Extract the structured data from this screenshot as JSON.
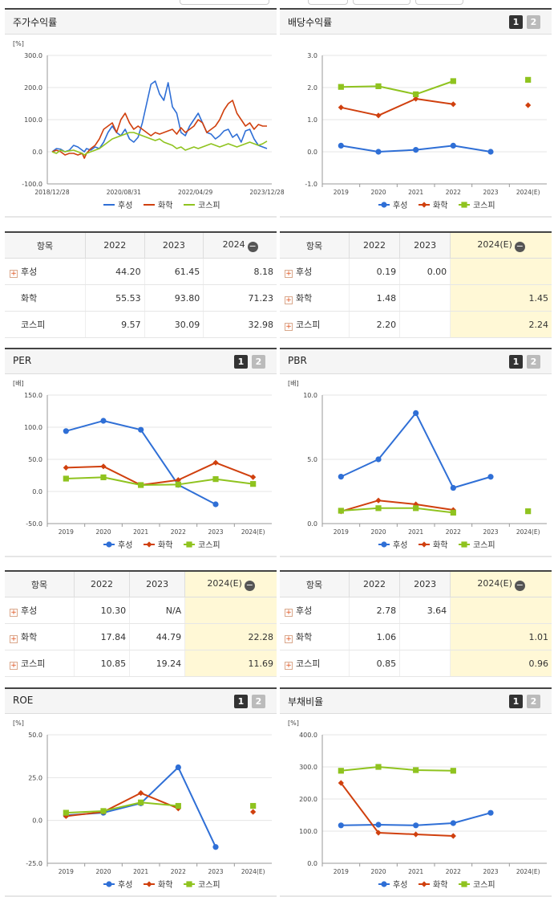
{
  "colors": {
    "husung": "#2f6fd6",
    "chem": "#d0400e",
    "kospi": "#8fc31f",
    "highlight": "#fff8d6"
  },
  "panels": [
    {
      "id": "returns",
      "title": "주가수익률",
      "pager": false,
      "unit": "[%]",
      "chart_data": {
        "type": "line",
        "title": "주가수익률",
        "ylabel": "[%]",
        "ylim": [
          -100,
          300
        ],
        "yticks": [
          "300.0",
          "200.0",
          "100.0",
          "0.0",
          "-100.0"
        ],
        "xticks": [
          "2018/12/28",
          "2020/08/31",
          "2022/04/29",
          "2023/12/28"
        ],
        "x": [
          0,
          2,
          4,
          6,
          8,
          10,
          12,
          14,
          15,
          16,
          18,
          20,
          22,
          24,
          26,
          28,
          30,
          32,
          34,
          36,
          38,
          40,
          42,
          44,
          46,
          48,
          50,
          52,
          54,
          56,
          58,
          60,
          62,
          64,
          66,
          68,
          70,
          72,
          74,
          76,
          78,
          80,
          82,
          84,
          86,
          88,
          90,
          92,
          94,
          96,
          98,
          100
        ],
        "series": [
          {
            "name": "후성",
            "values": [
              0,
              10,
              8,
              0,
              5,
              20,
              15,
              5,
              0,
              10,
              5,
              15,
              10,
              30,
              60,
              80,
              60,
              50,
              70,
              40,
              30,
              45,
              90,
              150,
              210,
              220,
              180,
              160,
              215,
              140,
              120,
              60,
              50,
              80,
              100,
              120,
              90,
              60,
              55,
              40,
              50,
              65,
              70,
              45,
              55,
              30,
              65,
              70,
              40,
              20,
              15,
              10
            ]
          },
          {
            "name": "화학",
            "values": [
              0,
              5,
              0,
              -10,
              -5,
              -5,
              -10,
              -5,
              -20,
              -5,
              10,
              20,
              40,
              70,
              80,
              90,
              60,
              100,
              120,
              90,
              70,
              80,
              70,
              60,
              50,
              60,
              55,
              60,
              65,
              70,
              55,
              75,
              60,
              70,
              80,
              100,
              90,
              60,
              70,
              80,
              100,
              130,
              150,
              160,
              120,
              100,
              80,
              90,
              70,
              85,
              80,
              80
            ]
          },
          {
            "name": "코스피",
            "values": [
              0,
              -5,
              5,
              0,
              3,
              5,
              0,
              -5,
              -10,
              -5,
              0,
              5,
              10,
              20,
              30,
              40,
              45,
              50,
              55,
              60,
              60,
              55,
              50,
              45,
              40,
              35,
              40,
              30,
              25,
              20,
              10,
              15,
              5,
              10,
              15,
              10,
              15,
              20,
              25,
              20,
              15,
              20,
              25,
              20,
              15,
              20,
              25,
              30,
              25,
              20,
              25,
              33
            ]
          }
        ],
        "legend": "bottom"
      },
      "table": null
    },
    {
      "id": "dividend",
      "title": "배당수익률",
      "pager": true,
      "unit": "",
      "chart_data": {
        "type": "line",
        "title": "배당수익률",
        "ylabel": "",
        "ylim": [
          -1,
          3
        ],
        "yticks": [
          "3.0",
          "2.0",
          "1.0",
          "0.0",
          "-1.0"
        ],
        "categories": [
          "2019",
          "2020",
          "2021",
          "2022",
          "2023",
          "2024(E)"
        ],
        "series": [
          {
            "name": "후성",
            "values": [
              0.19,
              0.0,
              0.06,
              0.19,
              0.0,
              null
            ]
          },
          {
            "name": "화학",
            "values": [
              1.38,
              1.13,
              1.65,
              1.48,
              null,
              1.45
            ]
          },
          {
            "name": "코스피",
            "values": [
              2.02,
              2.04,
              1.79,
              2.2,
              null,
              2.24
            ]
          }
        ],
        "legend": "bottom"
      }
    },
    {
      "id": "per",
      "title": "PER",
      "pager": true,
      "unit": "[배]",
      "chart_data": {
        "type": "line",
        "title": "PER",
        "ylabel": "[배]",
        "ylim": [
          -50,
          150
        ],
        "yticks": [
          "150.0",
          "100.0",
          "50.0",
          "0.0",
          "-50.0"
        ],
        "categories": [
          "2019",
          "2020",
          "2021",
          "2022",
          "2023",
          "2024(E)"
        ],
        "series": [
          {
            "name": "후성",
            "values": [
              94,
              110,
              96,
              10.3,
              -20,
              null
            ]
          },
          {
            "name": "화학",
            "values": [
              37,
              39,
              10,
              17.84,
              44.79,
              22.28
            ]
          },
          {
            "name": "코스피",
            "values": [
              20,
              22,
              10,
              10.85,
              19.24,
              11.69
            ]
          }
        ],
        "legend": "bottom"
      }
    },
    {
      "id": "pbr",
      "title": "PBR",
      "pager": true,
      "unit": "[배]",
      "chart_data": {
        "type": "line",
        "title": "PBR",
        "ylabel": "[배]",
        "ylim": [
          0,
          10
        ],
        "yticks": [
          "10.0",
          "5.0",
          "0.0"
        ],
        "categories": [
          "2019",
          "2020",
          "2021",
          "2022",
          "2023",
          "2024(E)"
        ],
        "series": [
          {
            "name": "후성",
            "values": [
              3.65,
              5.0,
              8.6,
              2.78,
              3.64,
              null
            ]
          },
          {
            "name": "화학",
            "values": [
              0.95,
              1.8,
              1.5,
              1.06,
              null,
              null
            ]
          },
          {
            "name": "코스피",
            "values": [
              1.0,
              1.2,
              1.2,
              0.85,
              null,
              0.96
            ]
          }
        ],
        "legend": "bottom"
      }
    },
    {
      "id": "roe",
      "title": "ROE",
      "pager": true,
      "unit": "[%]",
      "chart_data": {
        "type": "line",
        "title": "ROE",
        "ylabel": "[%]",
        "ylim": [
          -25,
          50
        ],
        "yticks": [
          "50.0",
          "25.0",
          "0.0",
          "-25.0"
        ],
        "categories": [
          "2019",
          "2020",
          "2021",
          "2022",
          "2023",
          "2024(E)"
        ],
        "series": [
          {
            "name": "후성",
            "values": [
              3,
              4.5,
              10,
              31,
              -15.5,
              null
            ]
          },
          {
            "name": "화학",
            "values": [
              2.5,
              5,
              16,
              7,
              null,
              5
            ]
          },
          {
            "name": "코스피",
            "values": [
              4.5,
              5.5,
              10.5,
              8.5,
              null,
              8.5
            ]
          }
        ],
        "legend": "bottom"
      }
    },
    {
      "id": "debt",
      "title": "부채비율",
      "pager": true,
      "unit": "[%]",
      "chart_data": {
        "type": "line",
        "title": "부채비율",
        "ylabel": "[%]",
        "ylim": [
          0,
          400
        ],
        "yticks": [
          "400.0",
          "300.0",
          "200.0",
          "100.0",
          "0.0"
        ],
        "categories": [
          "2019",
          "2020",
          "2021",
          "2022",
          "2023",
          "2024(E)"
        ],
        "series": [
          {
            "name": "후성",
            "values": [
              118,
              120,
              118,
              125,
              157,
              null
            ]
          },
          {
            "name": "화학",
            "values": [
              250,
              95,
              90,
              85,
              null,
              null
            ]
          },
          {
            "name": "코스피",
            "values": [
              288,
              300,
              290,
              288,
              null,
              null
            ]
          }
        ],
        "legend": "bottom"
      }
    }
  ],
  "tables": {
    "returns": {
      "header": [
        "항목",
        "2022",
        "2023",
        "2024"
      ],
      "minus": true,
      "rows": [
        {
          "label": "후성",
          "plus": true,
          "values": [
            "44.20",
            "61.45",
            "8.18"
          ]
        },
        {
          "label": "화학",
          "plus": false,
          "values": [
            "55.53",
            "93.80",
            "71.23"
          ]
        },
        {
          "label": "코스피",
          "plus": false,
          "values": [
            "9.57",
            "30.09",
            "32.98"
          ]
        }
      ],
      "highlight_last": false
    },
    "dividend": {
      "header": [
        "항목",
        "2022",
        "2023",
        "2024(E)"
      ],
      "minus": true,
      "rows": [
        {
          "label": "후성",
          "plus": true,
          "values": [
            "0.19",
            "0.00",
            ""
          ]
        },
        {
          "label": "화학",
          "plus": true,
          "values": [
            "1.48",
            "",
            "1.45"
          ]
        },
        {
          "label": "코스피",
          "plus": true,
          "values": [
            "2.20",
            "",
            "2.24"
          ]
        }
      ],
      "highlight_last": true
    },
    "per": {
      "header": [
        "항목",
        "2022",
        "2023",
        "2024(E)"
      ],
      "minus": true,
      "rows": [
        {
          "label": "후성",
          "plus": true,
          "values": [
            "10.30",
            "N/A",
            ""
          ]
        },
        {
          "label": "화학",
          "plus": true,
          "values": [
            "17.84",
            "44.79",
            "22.28"
          ]
        },
        {
          "label": "코스피",
          "plus": true,
          "values": [
            "10.85",
            "19.24",
            "11.69"
          ]
        }
      ],
      "highlight_last": true
    },
    "pbr": {
      "header": [
        "항목",
        "2022",
        "2023",
        "2024(E)"
      ],
      "minus": true,
      "rows": [
        {
          "label": "후성",
          "plus": true,
          "values": [
            "2.78",
            "3.64",
            ""
          ]
        },
        {
          "label": "화학",
          "plus": true,
          "values": [
            "1.06",
            "",
            "1.01"
          ]
        },
        {
          "label": "코스피",
          "plus": true,
          "values": [
            "0.85",
            "",
            "0.96"
          ]
        }
      ],
      "highlight_last": true
    }
  },
  "pager_labels": [
    "1",
    "2"
  ]
}
